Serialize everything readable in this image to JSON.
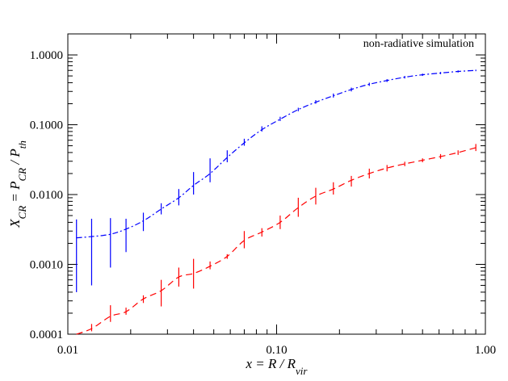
{
  "chart_data": {
    "type": "line",
    "annotation": "non-radiative simulation",
    "x_scale": "log",
    "y_scale": "log",
    "xlim": [
      0.01,
      1.0
    ],
    "ylim": [
      0.0001,
      2.0
    ],
    "x_ticks": [
      {
        "value": 0.01,
        "label": "0.01"
      },
      {
        "value": 0.1,
        "label": "0.10"
      },
      {
        "value": 1.0,
        "label": "1.00"
      }
    ],
    "y_ticks": [
      {
        "value": 0.0001,
        "label": "0.0001"
      },
      {
        "value": 0.001,
        "label": "0.0010"
      },
      {
        "value": 0.01,
        "label": "0.0100"
      },
      {
        "value": 0.1,
        "label": "0.1000"
      },
      {
        "value": 1.0,
        "label": "1.0000"
      }
    ],
    "xlabel": {
      "main": "x = R / R",
      "sub": "vir"
    },
    "ylabel": {
      "p1": "X",
      "s1": "CR",
      "p2": " = P",
      "s2": "CR",
      "p3": " / P",
      "s3": "th"
    },
    "series": [
      {
        "color": "#0000ff",
        "dash": "dashdot",
        "x": [
          0.011,
          0.013,
          0.016,
          0.019,
          0.023,
          0.028,
          0.034,
          0.04,
          0.048,
          0.058,
          0.07,
          0.085,
          0.104,
          0.127,
          0.154,
          0.187,
          0.228,
          0.278,
          0.338,
          0.411,
          0.5,
          0.61,
          0.74,
          0.9
        ],
        "y": [
          0.0024,
          0.0025,
          0.0027,
          0.0032,
          0.0042,
          0.0062,
          0.009,
          0.0135,
          0.02,
          0.034,
          0.055,
          0.085,
          0.12,
          0.165,
          0.21,
          0.26,
          0.32,
          0.38,
          0.43,
          0.48,
          0.52,
          0.55,
          0.58,
          0.6
        ],
        "ylo": [
          0.0004,
          0.0005,
          0.0009,
          0.0015,
          0.003,
          0.0052,
          0.007,
          0.01,
          0.015,
          0.029,
          0.05,
          0.08,
          0.113,
          0.156,
          0.2,
          0.245,
          0.3,
          0.36,
          0.41,
          0.46,
          0.5,
          0.53,
          0.56,
          0.585
        ],
        "yhi": [
          0.0044,
          0.0045,
          0.0046,
          0.0045,
          0.0055,
          0.0075,
          0.012,
          0.021,
          0.033,
          0.043,
          0.063,
          0.095,
          0.13,
          0.175,
          0.225,
          0.28,
          0.34,
          0.4,
          0.45,
          0.5,
          0.54,
          0.57,
          0.6,
          0.615
        ]
      },
      {
        "color": "#ff0000",
        "dash": "dashed",
        "x": [
          0.011,
          0.013,
          0.016,
          0.019,
          0.023,
          0.028,
          0.034,
          0.04,
          0.048,
          0.058,
          0.07,
          0.085,
          0.104,
          0.127,
          0.154,
          0.187,
          0.228,
          0.278,
          0.338,
          0.411,
          0.5,
          0.61,
          0.74,
          0.9
        ],
        "y": [
          0.0001,
          0.00012,
          0.00018,
          0.00021,
          0.00032,
          0.00042,
          0.00066,
          0.00074,
          0.00094,
          0.0013,
          0.0022,
          0.0029,
          0.004,
          0.0065,
          0.0095,
          0.012,
          0.016,
          0.02,
          0.024,
          0.0275,
          0.031,
          0.035,
          0.04,
          0.047
        ],
        "ylo": [
          0.0001,
          0.00011,
          0.00015,
          0.00019,
          0.00028,
          0.00025,
          0.00048,
          0.00045,
          0.00085,
          0.0012,
          0.0017,
          0.0025,
          0.0032,
          0.0048,
          0.0072,
          0.01,
          0.013,
          0.017,
          0.0215,
          0.0255,
          0.029,
          0.0325,
          0.037,
          0.042
        ],
        "yhi": [
          0.0001,
          0.00014,
          0.00026,
          0.00024,
          0.00036,
          0.0006,
          0.0009,
          0.0012,
          0.0011,
          0.0014,
          0.003,
          0.0033,
          0.005,
          0.009,
          0.0125,
          0.015,
          0.0185,
          0.0235,
          0.0265,
          0.0295,
          0.033,
          0.038,
          0.043,
          0.053
        ]
      }
    ]
  }
}
